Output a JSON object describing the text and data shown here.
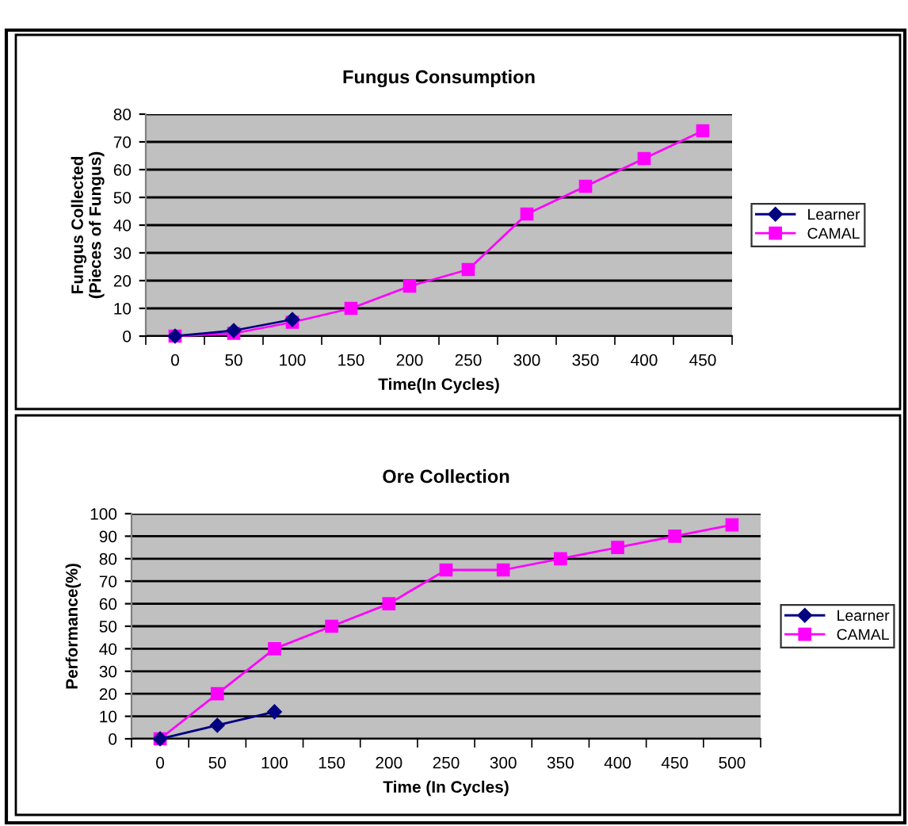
{
  "chart_data": [
    {
      "type": "line",
      "title": "Fungus Consumption",
      "xlabel": "Time(In Cycles)",
      "ylabel": "Fungus Collected\n(Pieces of Fungus)",
      "categories": [
        "0",
        "50",
        "100",
        "150",
        "200",
        "250",
        "300",
        "350",
        "400",
        "450"
      ],
      "series": [
        {
          "name": "Learner",
          "color": "#000080",
          "marker": "diamond",
          "values": [
            0,
            2,
            6,
            null,
            null,
            null,
            null,
            null,
            null,
            null
          ]
        },
        {
          "name": "CAMAL",
          "color": "#ff00ff",
          "marker": "square",
          "values": [
            0,
            1,
            5,
            10,
            18,
            24,
            44,
            54,
            64,
            74
          ]
        }
      ],
      "ylim": [
        0,
        80
      ],
      "yticks": [
        0,
        10,
        20,
        30,
        40,
        50,
        60,
        70,
        80
      ],
      "grid": "y",
      "legend": "right"
    },
    {
      "type": "line",
      "title": "Ore Collection",
      "xlabel": "Time (In Cycles)",
      "ylabel": "Performance(%)",
      "categories": [
        "0",
        "50",
        "100",
        "150",
        "200",
        "250",
        "300",
        "350",
        "400",
        "450",
        "500"
      ],
      "series": [
        {
          "name": "Learner",
          "color": "#000080",
          "marker": "diamond",
          "values": [
            0,
            6,
            12,
            null,
            null,
            null,
            null,
            null,
            null,
            null,
            null
          ]
        },
        {
          "name": "CAMAL",
          "color": "#ff00ff",
          "marker": "square",
          "values": [
            0,
            20,
            40,
            50,
            60,
            75,
            75,
            80,
            85,
            90,
            95
          ]
        }
      ],
      "ylim": [
        0,
        100
      ],
      "yticks": [
        0,
        10,
        20,
        30,
        40,
        50,
        60,
        70,
        80,
        90,
        100
      ],
      "grid": "y",
      "legend": "right"
    }
  ]
}
